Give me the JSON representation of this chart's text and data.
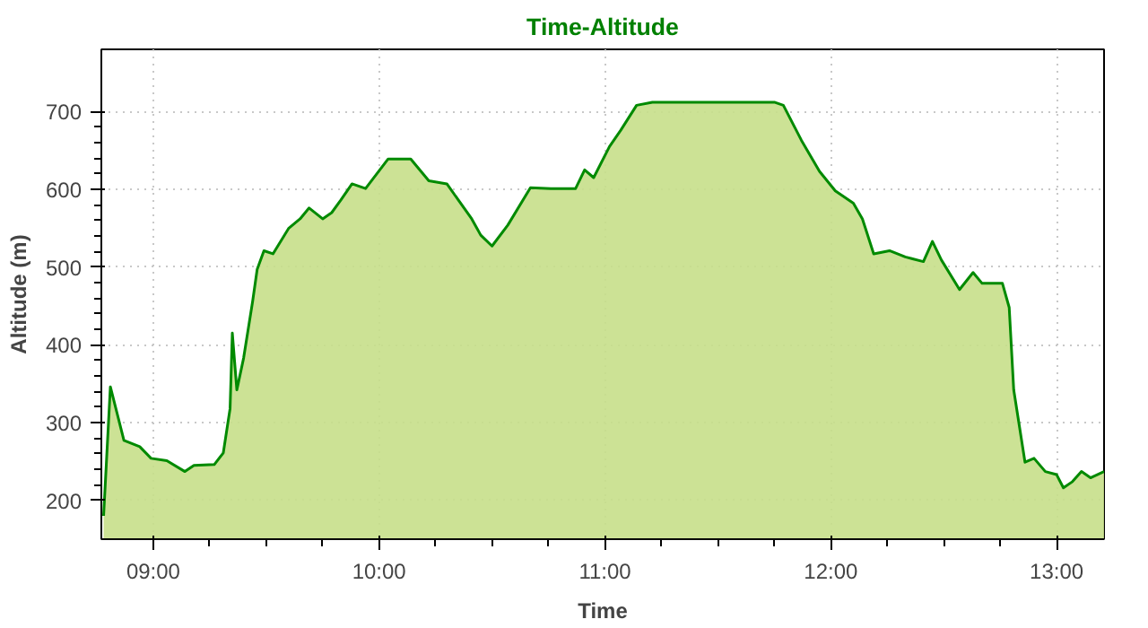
{
  "chart_data": {
    "type": "area",
    "title": "Time-Altitude",
    "xlabel": "Time",
    "ylabel": "Altitude (m)",
    "x": [
      8.78,
      8.81,
      8.87,
      8.94,
      8.99,
      9.06,
      9.14,
      9.18,
      9.27,
      9.31,
      9.34,
      9.35,
      9.37,
      9.4,
      9.44,
      9.46,
      9.49,
      9.53,
      9.6,
      9.65,
      9.69,
      9.75,
      9.79,
      9.83,
      9.88,
      9.94,
      10.04,
      10.14,
      10.22,
      10.3,
      10.41,
      10.45,
      10.5,
      10.57,
      10.67,
      10.76,
      10.87,
      10.91,
      10.95,
      11.02,
      11.07,
      11.14,
      11.21,
      11.75,
      11.79,
      11.87,
      11.95,
      12.02,
      12.1,
      12.14,
      12.19,
      12.26,
      12.33,
      12.41,
      12.45,
      12.49,
      12.57,
      12.63,
      12.67,
      12.76,
      12.79,
      12.81,
      12.86,
      12.9,
      12.95,
      13.0,
      13.03,
      13.07,
      13.11,
      13.15,
      13.21
    ],
    "series": [
      {
        "color": "#008a00",
        "values": [
          180,
          346,
          277,
          269,
          254,
          251,
          237,
          245,
          246,
          261,
          318,
          415,
          342,
          383,
          456,
          497,
          521,
          517,
          550,
          562,
          576,
          562,
          570,
          586,
          607,
          601,
          639,
          639,
          611,
          607,
          562,
          541,
          527,
          554,
          602,
          601,
          601,
          625,
          615,
          655,
          676,
          708,
          712,
          712,
          708,
          663,
          623,
          598,
          582,
          562,
          517,
          521,
          513,
          507,
          533,
          509,
          471,
          493,
          479,
          479,
          448,
          342,
          249,
          254,
          237,
          233,
          216,
          224,
          237,
          229,
          237
        ]
      }
    ],
    "xlim": [
      8.77,
      13.21
    ],
    "ylim": [
      150,
      780
    ],
    "xticks": [
      {
        "value": 9,
        "label": "09:00"
      },
      {
        "value": 10,
        "label": "10:00"
      },
      {
        "value": 11,
        "label": "11:00"
      },
      {
        "value": 12,
        "label": "12:00"
      },
      {
        "value": 13,
        "label": "13:00"
      }
    ],
    "yticks": [
      200,
      300,
      400,
      500,
      600,
      700
    ],
    "grid": true,
    "line_style": "solid"
  }
}
